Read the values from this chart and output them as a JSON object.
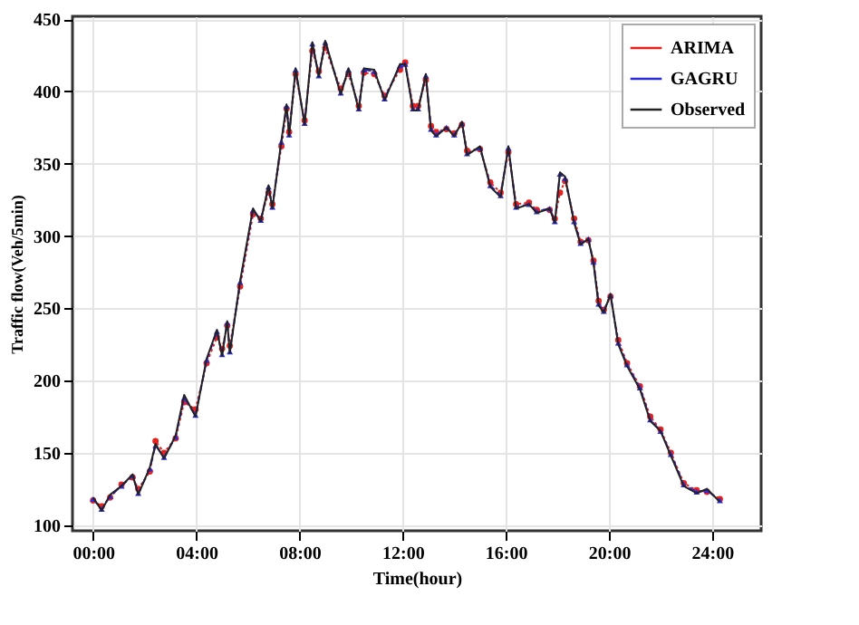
{
  "chart_data": {
    "type": "line",
    "xlabel": "Time(hour)",
    "ylabel": "Traffic flow(Veh/5min)",
    "x": [
      0,
      0.33,
      0.66,
      1.1,
      1.53,
      1.75,
      2.2,
      2.42,
      2.75,
      3.2,
      3.53,
      3.97,
      4.4,
      4.8,
      5.0,
      5.2,
      5.3,
      5.7,
      6.2,
      6.5,
      6.8,
      6.95,
      7.3,
      7.5,
      7.6,
      7.85,
      8.2,
      8.5,
      8.75,
      9.0,
      9.6,
      9.9,
      10.3,
      10.5,
      10.9,
      11.3,
      11.9,
      12.1,
      12.4,
      12.6,
      12.9,
      13.1,
      13.3,
      13.7,
      14.0,
      14.3,
      14.5,
      15.0,
      15.4,
      15.8,
      16.1,
      16.4,
      16.9,
      17.2,
      17.7,
      17.9,
      18.1,
      18.3,
      18.65,
      18.9,
      19.2,
      19.4,
      19.6,
      19.8,
      20.06,
      20.36,
      20.7,
      21.2,
      21.6,
      22.0,
      22.4,
      22.9,
      23.4,
      23.8,
      24.3
    ],
    "series": [
      {
        "name": "ARIMA",
        "color": "#e8211d",
        "line_style": "dotted",
        "marker": "circle",
        "values": [
          117,
          113,
          119,
          128,
          133,
          125,
          137,
          158,
          150,
          160,
          185,
          180,
          212,
          230,
          222,
          238,
          224,
          265,
          315,
          312,
          330,
          322,
          362,
          388,
          372,
          412,
          380,
          428,
          414,
          430,
          402,
          412,
          390,
          413,
          412,
          397,
          415,
          420,
          390,
          390,
          408,
          376,
          372,
          374,
          371,
          377,
          359,
          360,
          337,
          330,
          358,
          322,
          323,
          318,
          318,
          312,
          330,
          338,
          312,
          296,
          297,
          283,
          255,
          249,
          258,
          228,
          212,
          196,
          175,
          166,
          150,
          129,
          124,
          123,
          118
        ]
      },
      {
        "name": "GAGRU",
        "color": "#2b2bd6",
        "line_style": "dashed",
        "marker": "triangle",
        "values": [
          118,
          111,
          120,
          127,
          134,
          122,
          139,
          155,
          147,
          161,
          188,
          176,
          214,
          234,
          218,
          240,
          220,
          268,
          318,
          311,
          334,
          320,
          365,
          390,
          370,
          415,
          378,
          433,
          411,
          434,
          399,
          415,
          388,
          415,
          414,
          395,
          418,
          419,
          388,
          388,
          411,
          374,
          370,
          375,
          370,
          378,
          357,
          361,
          335,
          328,
          361,
          320,
          322,
          317,
          319,
          310,
          343,
          340,
          310,
          295,
          298,
          282,
          253,
          248,
          259,
          226,
          211,
          195,
          173,
          165,
          149,
          128,
          123,
          124,
          117
        ]
      },
      {
        "name": "Observed",
        "color": "#222222",
        "line_style": "solid",
        "marker": "none",
        "values": [
          119,
          110,
          121,
          127,
          135,
          121,
          140,
          156,
          146,
          162,
          190,
          175,
          215,
          235,
          217,
          241,
          219,
          269,
          319,
          310,
          335,
          319,
          366,
          391,
          369,
          416,
          377,
          434,
          410,
          435,
          398,
          416,
          387,
          416,
          415,
          394,
          419,
          419,
          387,
          387,
          412,
          373,
          369,
          375,
          369,
          379,
          356,
          362,
          334,
          327,
          362,
          319,
          322,
          316,
          319,
          309,
          344,
          341,
          309,
          294,
          298,
          281,
          252,
          247,
          260,
          225,
          210,
          194,
          172,
          165,
          148,
          127,
          122,
          125,
          116
        ]
      }
    ],
    "xlim": [
      -0.8,
      25.9
    ],
    "xticks": [
      {
        "value": 0,
        "label": "00:00"
      },
      {
        "value": 4,
        "label": "04:00"
      },
      {
        "value": 8,
        "label": "08:00"
      },
      {
        "value": 12,
        "label": "12:00"
      },
      {
        "value": 16,
        "label": "16:00"
      },
      {
        "value": 20,
        "label": "20:00"
      },
      {
        "value": 24,
        "label": "24:00"
      }
    ],
    "ylim": [
      96,
      452
    ],
    "yticks": [
      100,
      150,
      200,
      250,
      300,
      350,
      400,
      450
    ],
    "grid": true,
    "legend": "top right"
  }
}
